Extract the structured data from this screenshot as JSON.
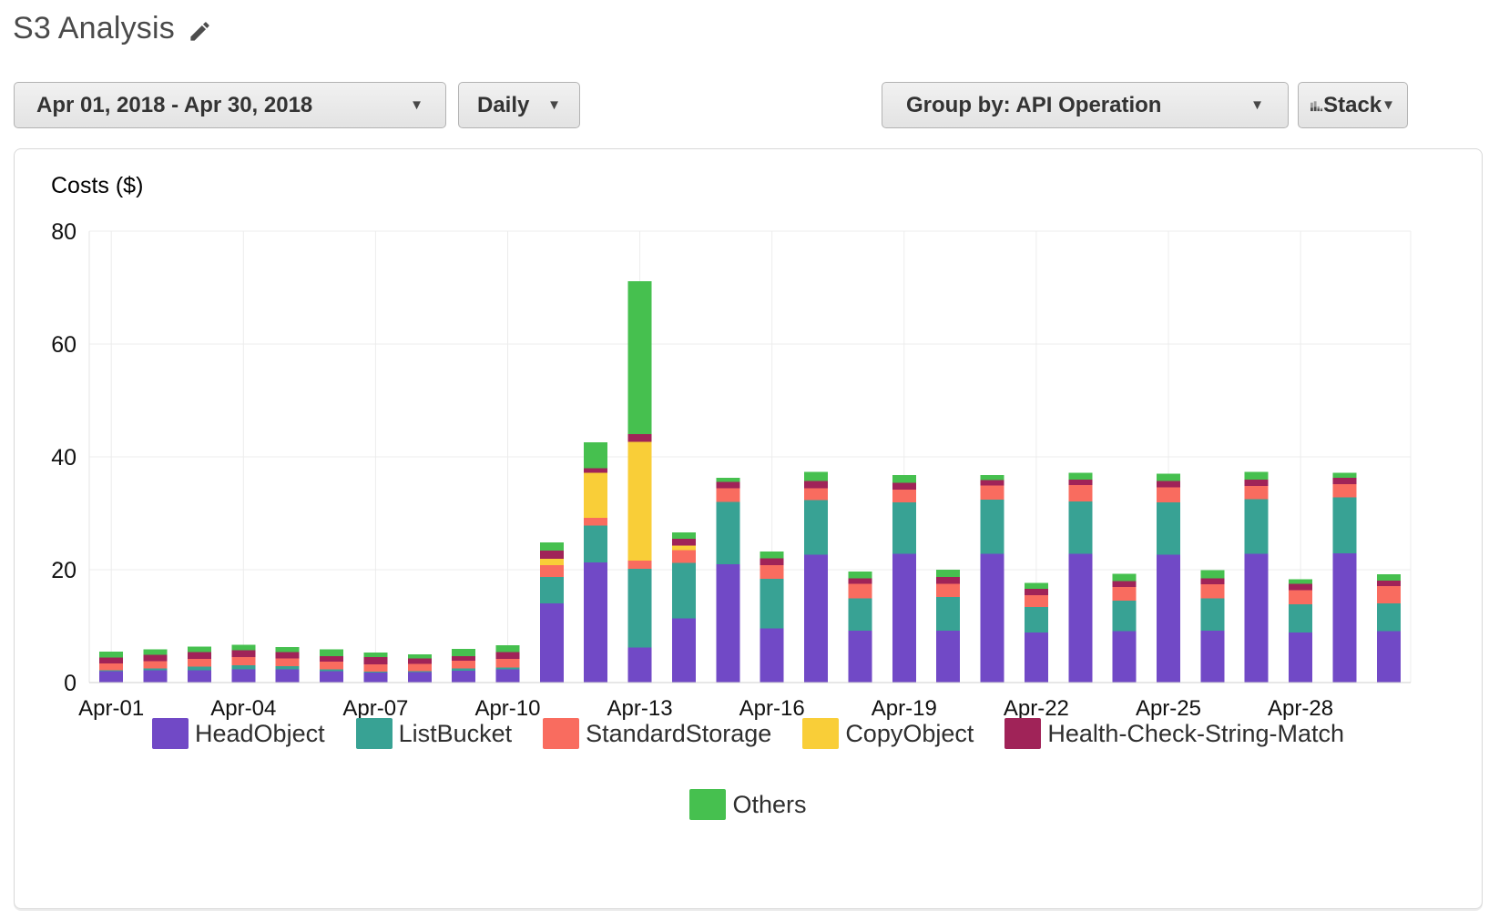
{
  "header": {
    "title": "S3 Analysis"
  },
  "toolbar": {
    "date_range": "Apr 01, 2018 - Apr 30, 2018",
    "granularity": "Daily",
    "group_by": "Group by: API Operation",
    "stack_label": "Stack",
    "caret": "▼"
  },
  "icons": {
    "edit_icon": "pencil",
    "stack_chart_icon": "mini-stacked-bars"
  },
  "chart_data": {
    "type": "bar",
    "stacked": true,
    "title": "Costs ($)",
    "ylabel": "Costs ($)",
    "ylim": [
      0,
      80
    ],
    "yticks": [
      0,
      20,
      40,
      60,
      80
    ],
    "grid": true,
    "legend_position": "bottom",
    "categories": [
      "Apr-01",
      "Apr-02",
      "Apr-03",
      "Apr-04",
      "Apr-05",
      "Apr-06",
      "Apr-07",
      "Apr-08",
      "Apr-09",
      "Apr-10",
      "Apr-11",
      "Apr-12",
      "Apr-13",
      "Apr-14",
      "Apr-15",
      "Apr-16",
      "Apr-17",
      "Apr-18",
      "Apr-19",
      "Apr-20",
      "Apr-21",
      "Apr-22",
      "Apr-23",
      "Apr-24",
      "Apr-25",
      "Apr-26",
      "Apr-27",
      "Apr-28",
      "Apr-29",
      "Apr-30"
    ],
    "xtick_labels": [
      "Apr-01",
      "Apr-04",
      "Apr-07",
      "Apr-10",
      "Apr-13",
      "Apr-16",
      "Apr-19",
      "Apr-22",
      "Apr-25",
      "Apr-28"
    ],
    "series": [
      {
        "name": "HeadObject",
        "color": "#7149c6",
        "values": [
          2.0,
          2.2,
          2.2,
          2.3,
          2.3,
          2.0,
          1.8,
          1.9,
          2.1,
          2.3,
          14.0,
          21.3,
          6.2,
          11.4,
          21.0,
          9.6,
          22.7,
          9.2,
          22.8,
          9.2,
          22.8,
          8.9,
          22.8,
          9.1,
          22.7,
          9.2,
          22.8,
          8.9,
          22.9,
          9.1
        ]
      },
      {
        "name": "ListBucket",
        "color": "#38a294",
        "values": [
          0.2,
          0.3,
          0.6,
          0.8,
          0.6,
          0.3,
          0.1,
          0.1,
          0.4,
          0.4,
          4.7,
          6.5,
          14.0,
          9.8,
          11.0,
          8.8,
          9.6,
          5.7,
          9.1,
          6.0,
          9.6,
          4.5,
          9.3,
          5.4,
          9.2,
          5.7,
          9.7,
          5.0,
          9.9,
          4.9
        ]
      },
      {
        "name": "StandardStorage",
        "color": "#f96c5f",
        "values": [
          1.2,
          1.3,
          1.4,
          1.4,
          1.4,
          1.4,
          1.3,
          1.3,
          1.4,
          1.5,
          2.1,
          1.4,
          1.4,
          2.3,
          2.4,
          2.4,
          2.1,
          2.6,
          2.3,
          2.3,
          2.5,
          2.1,
          2.9,
          2.4,
          2.7,
          2.5,
          2.3,
          2.5,
          2.4,
          3.1
        ]
      },
      {
        "name": "CopyObject",
        "color": "#f9ce38",
        "values": [
          0,
          0,
          0,
          0,
          0,
          0,
          0,
          0,
          0,
          0,
          1.1,
          8.0,
          21.1,
          0.8,
          0,
          0,
          0,
          0,
          0,
          0,
          0,
          0,
          0,
          0,
          0,
          0,
          0,
          0,
          0,
          0
        ]
      },
      {
        "name": "Health-Check-String-Match",
        "color": "#a02358",
        "values": [
          1.0,
          1.1,
          1.2,
          1.2,
          1.1,
          1.0,
          1.3,
          1.0,
          0.8,
          1.2,
          1.5,
          0.8,
          1.3,
          1.2,
          1.2,
          1.2,
          1.3,
          1.0,
          1.2,
          1.2,
          1.0,
          1.1,
          1.0,
          1.1,
          1.1,
          1.1,
          1.2,
          1.1,
          1.1,
          1.0
        ]
      },
      {
        "name": "Others",
        "color": "#46c04f",
        "values": [
          1.1,
          1.0,
          1.0,
          1.0,
          0.9,
          1.2,
          0.8,
          0.7,
          1.3,
          1.2,
          1.4,
          4.6,
          27.1,
          1.1,
          0.7,
          1.2,
          1.6,
          1.2,
          1.4,
          1.3,
          0.9,
          1.1,
          1.2,
          1.3,
          1.3,
          1.4,
          1.3,
          0.8,
          0.9,
          1.1
        ]
      }
    ],
    "legend_rows": [
      [
        "HeadObject",
        "ListBucket",
        "StandardStorage",
        "CopyObject",
        "Health-Check-String-Match"
      ],
      [
        "Others"
      ]
    ]
  }
}
